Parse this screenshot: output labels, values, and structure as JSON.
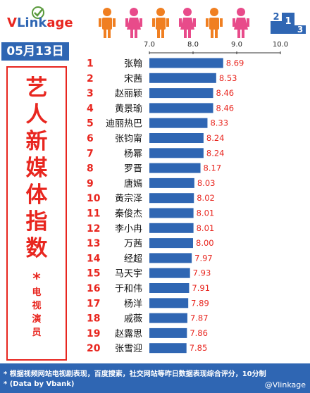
{
  "brand": {
    "v": "V",
    "rest": "Link",
    "age": "age"
  },
  "date": "05月13日",
  "side": {
    "title_chars": [
      "艺",
      "人",
      "新",
      "媒",
      "体",
      "指",
      "数"
    ],
    "star": "*",
    "sub_chars": [
      "电",
      "视",
      "演",
      "员"
    ]
  },
  "podium": {
    "labels": [
      "2",
      "1",
      "3"
    ]
  },
  "colors": {
    "bar": "#2f66b3",
    "rank": "#e8261f",
    "value": "#e8261f",
    "accent": "#e8261f",
    "person_orange": "#f07f21",
    "person_pink": "#e84b8a"
  },
  "chart_data": {
    "type": "bar",
    "orientation": "horizontal",
    "xlim": [
      7.0,
      10.0
    ],
    "x_ticks": [
      "7.0",
      "8.0",
      "9.0",
      "10.0"
    ],
    "ranks": [
      "1",
      "2",
      "3",
      "4",
      "5",
      "6",
      "7",
      "8",
      "9",
      "10",
      "11",
      "12",
      "13",
      "14",
      "15",
      "16",
      "17",
      "18",
      "19",
      "20"
    ],
    "categories": [
      "张翰",
      "宋茜",
      "赵丽颖",
      "黄景瑜",
      "迪丽热巴",
      "张钧甯",
      "杨幂",
      "罗晋",
      "唐嫣",
      "黄宗泽",
      "秦俊杰",
      "李小冉",
      "万茜",
      "经超",
      "马天宇",
      "于和伟",
      "杨洋",
      "戚薇",
      "赵露思",
      "张雪迎"
    ],
    "values": [
      8.69,
      8.53,
      8.46,
      8.46,
      8.33,
      8.24,
      8.24,
      8.17,
      8.03,
      8.02,
      8.01,
      8.01,
      8.0,
      7.97,
      7.93,
      7.91,
      7.89,
      7.87,
      7.86,
      7.85
    ],
    "value_labels": [
      "8.69",
      "8.53",
      "8.46",
      "8.46",
      "8.33",
      "8.24",
      "8.24",
      "8.17",
      "8.03",
      "8.02",
      "8.01",
      "8.01",
      "8.00",
      "7.97",
      "7.93",
      "7.91",
      "7.89",
      "7.87",
      "7.86",
      "7.85"
    ]
  },
  "footer": {
    "note": "* 根据视频网站电视剧表现，百度搜索，社交网站等昨日数据表现综合评分，10分制",
    "source": "* (Data by Vbank)",
    "watermark": "@Vlinkage"
  }
}
